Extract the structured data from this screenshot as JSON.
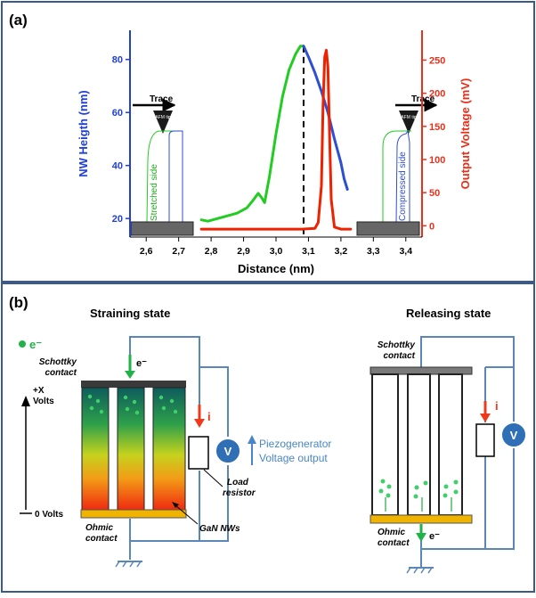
{
  "panel_a": {
    "label": "(a)",
    "x_axis": {
      "title": "Distance (nm)",
      "ticks": [
        "2,6",
        "2,7",
        "2,8",
        "2,9",
        "3,0",
        "3,1",
        "3,2",
        "3,3",
        "3,4"
      ]
    },
    "y_left": {
      "title": "NW Heigth (nm)",
      "ticks": [
        "20",
        "40",
        "60",
        "80"
      ]
    },
    "y_right": {
      "title": "Output Voltage (mV)",
      "ticks": [
        "0",
        "50",
        "100",
        "150",
        "200",
        "250"
      ]
    },
    "left_inset": {
      "trace_label": "Trace",
      "tip_label": "AFM tip",
      "side_label": "Stretched side"
    },
    "right_inset": {
      "trace_label": "Trace",
      "tip_label": "AFM tip",
      "side_label": "Compressed side"
    },
    "colors": {
      "height": "#2e4fd0",
      "stretched": "#22cc22",
      "voltage": "#ee2200",
      "left_axis": "#1f3fd6",
      "right_axis": "#e8301a"
    }
  },
  "chart_data": {
    "type": "line",
    "xlabel": "Distance (nm)",
    "xlim": [
      2.55,
      3.45
    ],
    "ylabel": "NW Heigth (nm)",
    "ylim": [
      13,
      91
    ],
    "y2label": "Output Voltage (mV)",
    "y2lim": [
      -17,
      295
    ],
    "series": [
      {
        "axis": "left",
        "color": "#22cc22",
        "x": [
          2.77,
          2.79,
          2.82,
          2.85,
          2.88,
          2.91,
          2.93,
          2.945,
          2.955,
          2.965,
          2.98,
          3.0,
          3.02,
          3.04,
          3.06,
          3.075,
          3.085
        ],
        "y": [
          19.5,
          19,
          20,
          21,
          22,
          24,
          27,
          29.5,
          28,
          26,
          36,
          52,
          66,
          76,
          82,
          85,
          85
        ]
      },
      {
        "axis": "left",
        "color": "#2e4fd0",
        "x": [
          3.085,
          3.1,
          3.12,
          3.14,
          3.16,
          3.18,
          3.2,
          3.21,
          3.22
        ],
        "y": [
          85,
          81,
          75,
          68,
          60,
          50,
          41,
          35,
          31
        ]
      },
      {
        "axis": "right",
        "color": "#ee2200",
        "x": [
          2.77,
          2.9,
          3.0,
          3.08,
          3.12,
          3.13,
          3.14,
          3.145,
          3.15,
          3.155,
          3.16,
          3.165,
          3.17,
          3.18,
          3.2,
          3.23
        ],
        "y": [
          -5,
          -5,
          -5,
          -5,
          -4,
          5,
          60,
          180,
          255,
          265,
          240,
          140,
          40,
          -2,
          -5,
          -5
        ]
      }
    ],
    "annotations": [
      {
        "type": "vline",
        "x": 3.085,
        "style": "dashed"
      }
    ]
  },
  "panel_b": {
    "label": "(b)",
    "straining": {
      "title": "Straining state",
      "electron_legend": "e⁻",
      "schottky": [
        "Schottky",
        "contact"
      ],
      "ohmic": [
        "Ohmic",
        "contact"
      ],
      "electron": "e⁻",
      "current": "i",
      "voltmeter": "V",
      "piezo_label": [
        "Piezogenerator",
        "Voltage output"
      ],
      "load_resistor": [
        "Load",
        "resistor"
      ],
      "gan": "GaN NWs",
      "volts_top": [
        "+X",
        "Volts"
      ],
      "volts_bottom": "0 Volts"
    },
    "releasing": {
      "title": "Releasing state",
      "schottky": [
        "Schottky",
        "contact"
      ],
      "ohmic": [
        "Ohmic",
        "contact"
      ],
      "electron": "e⁻",
      "current": "i",
      "voltmeter": "V"
    }
  }
}
